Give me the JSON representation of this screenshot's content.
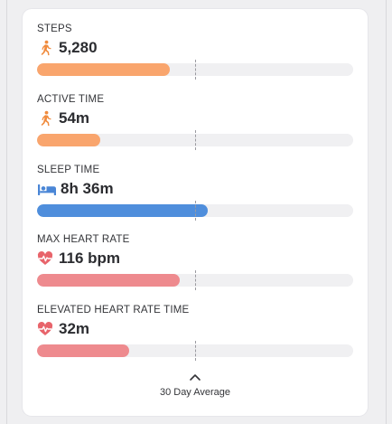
{
  "metrics": [
    {
      "label": "STEPS",
      "value": "5,280",
      "icon": "walking-figure-icon",
      "color": "#f9a56d",
      "fill_fraction": 0.42
    },
    {
      "label": "ACTIVE TIME",
      "value": "54m",
      "icon": "walking-figure-icon",
      "color": "#f9a56d",
      "fill_fraction": 0.2
    },
    {
      "label": "SLEEP TIME",
      "value": "8h 36m",
      "icon": "bed-icon",
      "color": "#4f8edc",
      "fill_fraction": 0.54
    },
    {
      "label": "MAX HEART RATE",
      "value": "116 bpm",
      "icon": "heart-pulse-icon",
      "color": "#ee8a8e",
      "fill_fraction": 0.45
    },
    {
      "label": "ELEVATED HEART RATE TIME",
      "value": "32m",
      "icon": "heart-pulse-icon",
      "color": "#ee8a8e",
      "fill_fraction": 0.29
    }
  ],
  "footer": {
    "label": "30 Day Average",
    "icon": "chevron-up-icon"
  }
}
